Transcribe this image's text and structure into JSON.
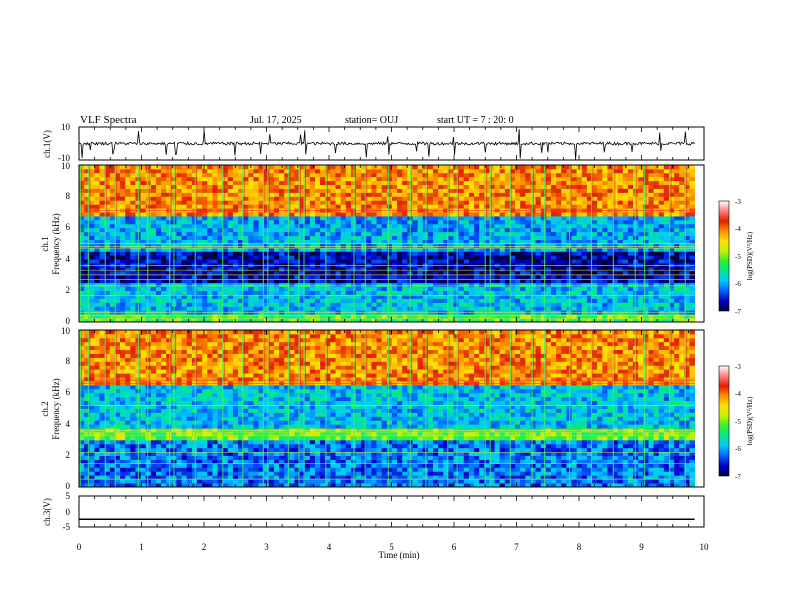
{
  "header": {
    "title": "VLF Spectra",
    "date": "Jul. 17, 2025",
    "station": "station= OUJ",
    "start": "start UT =  7 : 20: 0"
  },
  "chart_data": [
    {
      "type": "line",
      "name": "ch1-waveform",
      "ylabel": "ch.1(V)",
      "ylim": [
        -10,
        10
      ],
      "yticks": [
        "10",
        "-10"
      ],
      "xlim": [
        0,
        9.85
      ],
      "baseline": 0,
      "noise_amplitude": 0.9,
      "spike_times": [
        0.05,
        0.18,
        0.55,
        0.95,
        1.4,
        1.55,
        2.0,
        2.5,
        2.9,
        3.05,
        3.55,
        3.62,
        4.1,
        4.6,
        4.95,
        5.4,
        5.6,
        6.0,
        6.5,
        7.05,
        7.4,
        7.5,
        7.95,
        8.4,
        8.85,
        9.3,
        9.7
      ]
    },
    {
      "type": "heatmap",
      "name": "ch1-spectrogram",
      "ylabel": "Frequency (kHz)",
      "channel_label": "ch.1",
      "xlim": [
        0,
        9.85
      ],
      "ylim": [
        0,
        10
      ],
      "yticks": [
        "0",
        "2",
        "4",
        "6",
        "8",
        "10"
      ],
      "value_range": [
        -7,
        -3
      ],
      "bands": [
        {
          "from_khz": 0,
          "to_khz": 0.6,
          "level": -5.2
        },
        {
          "from_khz": 0.6,
          "to_khz": 2.4,
          "level": -5.9
        },
        {
          "from_khz": 2.4,
          "to_khz": 4.6,
          "level": -6.7
        },
        {
          "from_khz": 4.6,
          "to_khz": 6.8,
          "level": -6.0
        },
        {
          "from_khz": 6.8,
          "to_khz": 10,
          "level": -4.1
        }
      ],
      "tone_lines_khz": [
        0.2,
        0.4,
        0.6,
        1.7,
        2.3,
        2.7,
        3.0,
        3.3,
        3.6,
        4.7,
        4.8,
        5.0,
        7.1
      ],
      "bursts_min": [
        0.02,
        0.15,
        0.42,
        0.58,
        0.95,
        1.1,
        1.45,
        1.52,
        1.86,
        2.3,
        2.62,
        2.95,
        3.02,
        3.35,
        3.52,
        3.6,
        3.95,
        4.4,
        4.58,
        4.95,
        5.3,
        5.55,
        5.9,
        6.05,
        6.5,
        6.58,
        6.9,
        7.25,
        7.45,
        7.85,
        8.2,
        8.55,
        8.9,
        9.05,
        9.45,
        9.7
      ]
    },
    {
      "type": "heatmap",
      "name": "ch2-spectrogram",
      "ylabel": "Frequency (kHz)",
      "channel_label": "ch.2",
      "xlim": [
        0,
        9.85
      ],
      "ylim": [
        0,
        10
      ],
      "yticks": [
        "0",
        "2",
        "4",
        "6",
        "8",
        "10"
      ],
      "value_range": [
        -7,
        -3
      ],
      "bands": [
        {
          "from_khz": 0,
          "to_khz": 3.1,
          "level": -6.2
        },
        {
          "from_khz": 3.1,
          "to_khz": 3.7,
          "level": -5.1
        },
        {
          "from_khz": 3.7,
          "to_khz": 6.4,
          "level": -5.9
        },
        {
          "from_khz": 6.4,
          "to_khz": 10,
          "level": -4.1
        }
      ],
      "tone_lines_khz": [
        0.5,
        1.5,
        2.2,
        3.3,
        3.5,
        3.6,
        5.2,
        6.6,
        6.8
      ],
      "bursts_min": [
        0.02,
        0.15,
        0.42,
        0.58,
        0.95,
        1.1,
        1.45,
        1.52,
        1.86,
        2.3,
        2.62,
        2.95,
        3.02,
        3.35,
        3.52,
        3.6,
        3.95,
        4.4,
        4.58,
        4.95,
        5.3,
        5.55,
        5.9,
        6.05,
        6.5,
        6.58,
        6.9,
        7.25,
        7.45,
        7.85,
        8.2,
        8.55,
        8.9,
        9.05,
        9.45,
        9.7
      ]
    },
    {
      "type": "line",
      "name": "ch3-waveform",
      "ylabel": "ch.3(V)",
      "ylim": [
        -5,
        5
      ],
      "yticks": [
        "5",
        "0",
        "-5"
      ],
      "xlim": [
        0,
        9.85
      ],
      "baseline": -2.5,
      "noise_amplitude": 0
    }
  ],
  "xaxis": {
    "label": "Time (min)",
    "ticks": [
      "0",
      "1",
      "2",
      "3",
      "4",
      "5",
      "6",
      "7",
      "8",
      "9",
      "10"
    ],
    "xlim": [
      0,
      10
    ]
  },
  "colorbar": {
    "label": "log(PSD)(V²/Hz)",
    "ticks": [
      "-3",
      "-4",
      "-5",
      "-6",
      "-7"
    ],
    "range": [
      -7,
      -3
    ],
    "colors": [
      "#000040",
      "#0000c8",
      "#0060ff",
      "#00c8ff",
      "#00e890",
      "#30f030",
      "#c8f000",
      "#ffe000",
      "#ff9000",
      "#e02000",
      "#ff8080",
      "#ffffff"
    ]
  }
}
